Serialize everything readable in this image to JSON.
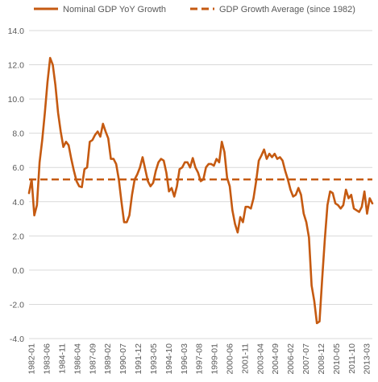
{
  "chart_data": {
    "type": "line",
    "title": "",
    "xlabel": "",
    "ylabel": "",
    "ylim": [
      -4.0,
      14.0
    ],
    "y_ticks": [
      "14.0",
      "12.0",
      "10.0",
      "8.0",
      "6.0",
      "4.0",
      "2.0",
      "0.0",
      "-2.0",
      "-4.0"
    ],
    "x_tick_labels": [
      "1982-01",
      "1983-06",
      "1984-11",
      "1986-04",
      "1987-09",
      "1989-02",
      "1990-07",
      "1991-12",
      "1993-05",
      "1994-10",
      "1996-03",
      "1997-08",
      "1999-01",
      "2000-06",
      "2001-11",
      "2003-04",
      "2004-09",
      "2006-02",
      "2007-07",
      "2008-12",
      "2010-05",
      "2011-10",
      "2013-03"
    ],
    "legend_position": "top",
    "grid": "horizontal",
    "colors": {
      "series": "#C55A11"
    },
    "series": [
      {
        "name": "Nominal GDP YoY Growth",
        "style": "solid",
        "points": [
          [
            1982.0,
            4.5
          ],
          [
            1982.25,
            5.3
          ],
          [
            1982.5,
            3.2
          ],
          [
            1982.75,
            3.8
          ],
          [
            1983.0,
            6.3
          ],
          [
            1983.25,
            7.6
          ],
          [
            1983.5,
            9.2
          ],
          [
            1983.75,
            11.0
          ],
          [
            1984.0,
            12.4
          ],
          [
            1984.25,
            12.0
          ],
          [
            1984.5,
            10.8
          ],
          [
            1984.75,
            9.2
          ],
          [
            1985.0,
            8.1
          ],
          [
            1985.25,
            7.2
          ],
          [
            1985.5,
            7.5
          ],
          [
            1985.75,
            7.3
          ],
          [
            1986.0,
            6.5
          ],
          [
            1986.25,
            5.8
          ],
          [
            1986.5,
            5.2
          ],
          [
            1986.75,
            4.9
          ],
          [
            1987.0,
            4.85
          ],
          [
            1987.25,
            5.9
          ],
          [
            1987.5,
            6.0
          ],
          [
            1987.75,
            7.5
          ],
          [
            1988.0,
            7.6
          ],
          [
            1988.25,
            7.9
          ],
          [
            1988.5,
            8.1
          ],
          [
            1988.75,
            7.8
          ],
          [
            1989.0,
            8.55
          ],
          [
            1989.25,
            8.1
          ],
          [
            1989.5,
            7.7
          ],
          [
            1989.75,
            6.5
          ],
          [
            1990.0,
            6.5
          ],
          [
            1990.25,
            6.2
          ],
          [
            1990.5,
            5.3
          ],
          [
            1990.75,
            4.0
          ],
          [
            1991.0,
            2.8
          ],
          [
            1991.25,
            2.8
          ],
          [
            1991.5,
            3.2
          ],
          [
            1991.75,
            4.4
          ],
          [
            1992.0,
            5.3
          ],
          [
            1992.25,
            5.6
          ],
          [
            1992.5,
            6.0
          ],
          [
            1992.75,
            6.6
          ],
          [
            1993.0,
            5.9
          ],
          [
            1993.25,
            5.2
          ],
          [
            1993.5,
            4.9
          ],
          [
            1993.75,
            5.1
          ],
          [
            1994.0,
            5.8
          ],
          [
            1994.25,
            6.3
          ],
          [
            1994.5,
            6.5
          ],
          [
            1994.75,
            6.4
          ],
          [
            1995.0,
            5.7
          ],
          [
            1995.25,
            4.6
          ],
          [
            1995.5,
            4.8
          ],
          [
            1995.75,
            4.3
          ],
          [
            1996.0,
            4.9
          ],
          [
            1996.25,
            5.9
          ],
          [
            1996.5,
            6.0
          ],
          [
            1996.75,
            6.3
          ],
          [
            1997.0,
            6.3
          ],
          [
            1997.25,
            6.0
          ],
          [
            1997.5,
            6.55
          ],
          [
            1997.75,
            6.0
          ],
          [
            1998.0,
            5.7
          ],
          [
            1998.25,
            5.2
          ],
          [
            1998.5,
            5.3
          ],
          [
            1998.75,
            6.0
          ],
          [
            1999.0,
            6.2
          ],
          [
            1999.25,
            6.2
          ],
          [
            1999.5,
            6.1
          ],
          [
            1999.75,
            6.5
          ],
          [
            2000.0,
            6.3
          ],
          [
            2000.25,
            7.5
          ],
          [
            2000.5,
            6.9
          ],
          [
            2000.75,
            5.4
          ],
          [
            2001.0,
            4.9
          ],
          [
            2001.25,
            3.5
          ],
          [
            2001.5,
            2.7
          ],
          [
            2001.75,
            2.2
          ],
          [
            2002.0,
            3.1
          ],
          [
            2002.25,
            2.8
          ],
          [
            2002.5,
            3.7
          ],
          [
            2002.75,
            3.7
          ],
          [
            2003.0,
            3.6
          ],
          [
            2003.25,
            4.2
          ],
          [
            2003.5,
            5.2
          ],
          [
            2003.75,
            6.4
          ],
          [
            2004.0,
            6.7
          ],
          [
            2004.25,
            7.05
          ],
          [
            2004.5,
            6.5
          ],
          [
            2004.75,
            6.8
          ],
          [
            2005.0,
            6.6
          ],
          [
            2005.25,
            6.8
          ],
          [
            2005.5,
            6.5
          ],
          [
            2005.75,
            6.6
          ],
          [
            2006.0,
            6.4
          ],
          [
            2006.25,
            5.8
          ],
          [
            2006.5,
            5.3
          ],
          [
            2006.75,
            4.7
          ],
          [
            2007.0,
            4.3
          ],
          [
            2007.25,
            4.4
          ],
          [
            2007.5,
            4.8
          ],
          [
            2007.75,
            4.4
          ],
          [
            2008.0,
            3.3
          ],
          [
            2008.25,
            2.8
          ],
          [
            2008.5,
            1.9
          ],
          [
            2008.75,
            -0.9
          ],
          [
            2009.0,
            -1.8
          ],
          [
            2009.25,
            -3.1
          ],
          [
            2009.5,
            -3.0
          ],
          [
            2009.75,
            -0.5
          ],
          [
            2010.0,
            1.8
          ],
          [
            2010.25,
            3.8
          ],
          [
            2010.5,
            4.6
          ],
          [
            2010.75,
            4.5
          ],
          [
            2011.0,
            3.9
          ],
          [
            2011.25,
            3.8
          ],
          [
            2011.5,
            3.6
          ],
          [
            2011.75,
            3.8
          ],
          [
            2012.0,
            4.7
          ],
          [
            2012.25,
            4.2
          ],
          [
            2012.5,
            4.4
          ],
          [
            2012.75,
            3.6
          ],
          [
            2013.0,
            3.5
          ],
          [
            2013.25,
            3.4
          ],
          [
            2013.5,
            3.7
          ],
          [
            2013.75,
            4.6
          ],
          [
            2014.0,
            3.3
          ],
          [
            2014.25,
            4.2
          ],
          [
            2014.5,
            3.9
          ]
        ]
      },
      {
        "name": "GDP Growth Average (since 1982)",
        "style": "dashed",
        "points": [
          [
            1982.0,
            5.3
          ],
          [
            2014.5,
            5.3
          ]
        ]
      }
    ]
  }
}
